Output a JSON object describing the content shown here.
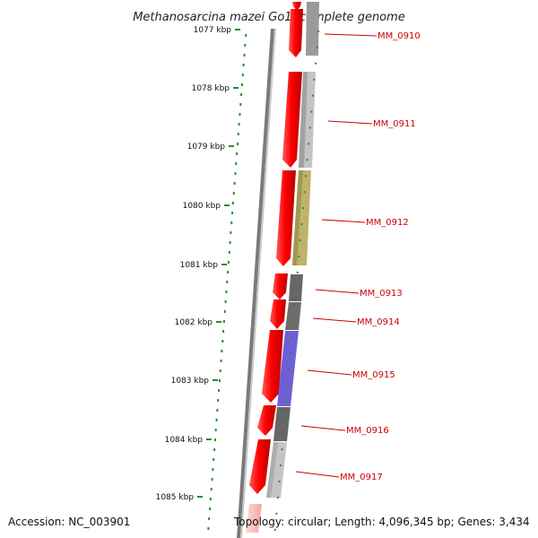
{
  "title": "Methanosarcina mazei Go1, complete genome",
  "accession_text": "Accession: NC_003901",
  "topology_text": "Topology: circular; Length: 4,096,345 bp; Genes: 3,434",
  "colors": {
    "strand": "#ff0000",
    "gene_label": "#cc0000",
    "tick": "#2e8b2e",
    "backbone": "#777777"
  },
  "kbp_ticks": [
    "1077 kbp",
    "1078 kbp",
    "1079 kbp",
    "1080 kbp",
    "1081 kbp",
    "1082 kbp",
    "1083 kbp",
    "1084 kbp",
    "1085 kbp"
  ],
  "genes": [
    {
      "label": "MM_0910",
      "fill": "#bbbbbb"
    },
    {
      "label": "MM_0911",
      "fill": "#c4c4c4"
    },
    {
      "label": "MM_0912",
      "fill": "#bfb36a"
    },
    {
      "label": "MM_0913",
      "fill": "#666666"
    },
    {
      "label": "MM_0914",
      "fill": "#666666"
    },
    {
      "label": "MM_0915",
      "fill": "#6e5fd6"
    },
    {
      "label": "MM_0916",
      "fill": "#666666"
    },
    {
      "label": "MM_0917",
      "fill": "#c4c4c4"
    }
  ]
}
